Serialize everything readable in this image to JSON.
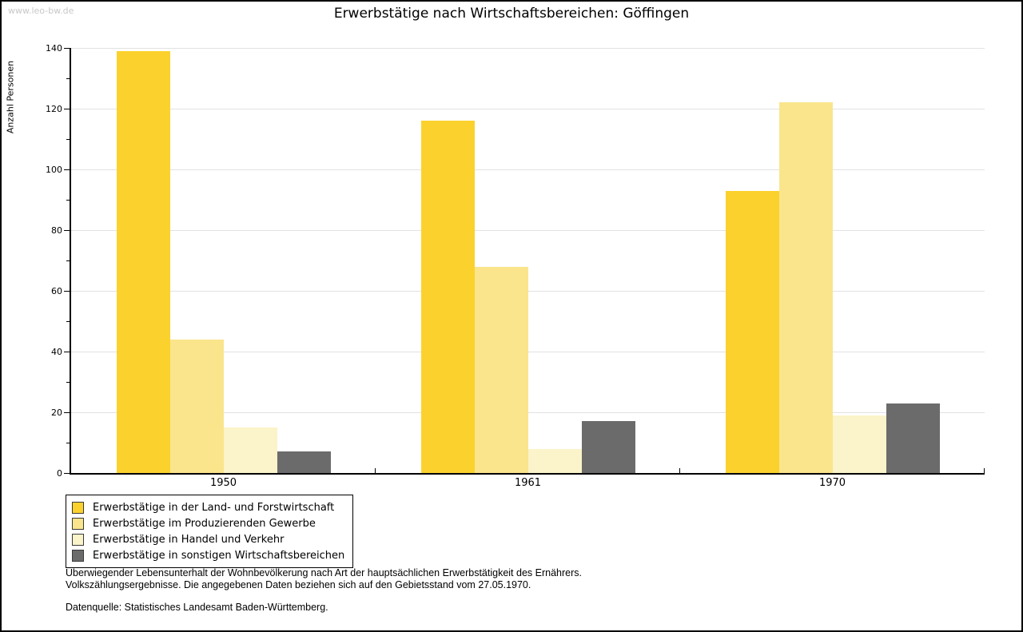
{
  "watermark": "www.leo-bw.de",
  "chart_data": {
    "type": "bar",
    "title": "Erwerbstätige nach Wirtschaftsbereichen: Göffingen",
    "ylabel": "Anzahl Personen",
    "xlabel": "",
    "categories": [
      "1950",
      "1961",
      "1970"
    ],
    "series": [
      {
        "name": "Erwerbstätige in der Land- und Forstwirtschaft",
        "color": "#FBD22D",
        "values": [
          139,
          116,
          93
        ]
      },
      {
        "name": "Erwerbstätige im Produzierenden Gewerbe",
        "color": "#FAE58C",
        "values": [
          44,
          68,
          122
        ]
      },
      {
        "name": "Erwerbstätige in Handel und Verkehr",
        "color": "#FBF3C9",
        "values": [
          15,
          8,
          19
        ]
      },
      {
        "name": "Erwerbstätige in sonstigen Wirtschaftsbereichen",
        "color": "#6B6B6B",
        "values": [
          7,
          17,
          23
        ]
      }
    ],
    "ylim": [
      0,
      140
    ],
    "ytick_step": 20,
    "yminor_step": 10,
    "grid": true,
    "gridline_color": "#e2e2e2",
    "axis_color": "#000000",
    "legend_position": "bottom-left"
  },
  "footer": {
    "note_line1": "Überwiegender Lebensunterhalt der Wohnbevölkerung nach Art der hauptsächlichen Erwerbstätigkeit des Ernährers.",
    "note_line2": "Volkszählungsergebnisse. Die angegebenen Daten beziehen sich auf den Gebietsstand vom 27.05.1970.",
    "source": "Datenquelle: Statistisches Landesamt Baden-Württemberg."
  }
}
